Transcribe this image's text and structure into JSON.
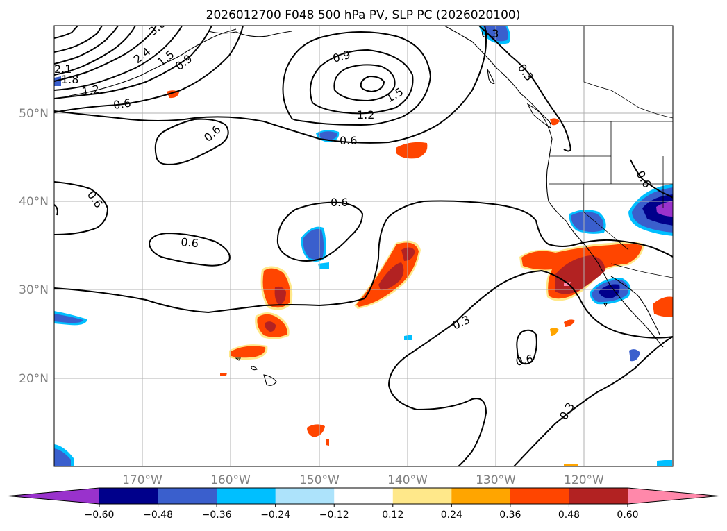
{
  "title": "2026012700 F048 500 hPa PV, SLP PC (2026020100)",
  "map": {
    "lat_range": [
      10,
      60
    ],
    "lon_range": [
      -180,
      -110
    ],
    "lat_labels": [
      "50°N",
      "40°N",
      "30°N",
      "20°N"
    ],
    "lon_labels": [
      "170°W",
      "160°W",
      "150°W",
      "140°W",
      "130°W",
      "120°W"
    ]
  },
  "colorbar": {
    "ticks": [
      "−0.60",
      "−0.48",
      "−0.36",
      "−0.24",
      "−0.12",
      "0.12",
      "0.24",
      "0.36",
      "0.48",
      "0.60"
    ],
    "colors": {
      "under": "#9932CC",
      "bins": [
        "#00008B",
        "#3A5FCD",
        "#00BFFF",
        "#ADE3FB",
        "#FFFFFF",
        "#FFE88A",
        "#FFA500",
        "#FF4500",
        "#B22222"
      ],
      "over": "#FF88AA"
    }
  },
  "contour_labels": [
    "3.0",
    "2.4",
    "2.1",
    "1.8",
    "1.5",
    "1.2",
    "0.9",
    "0.6",
    "0.3"
  ]
}
